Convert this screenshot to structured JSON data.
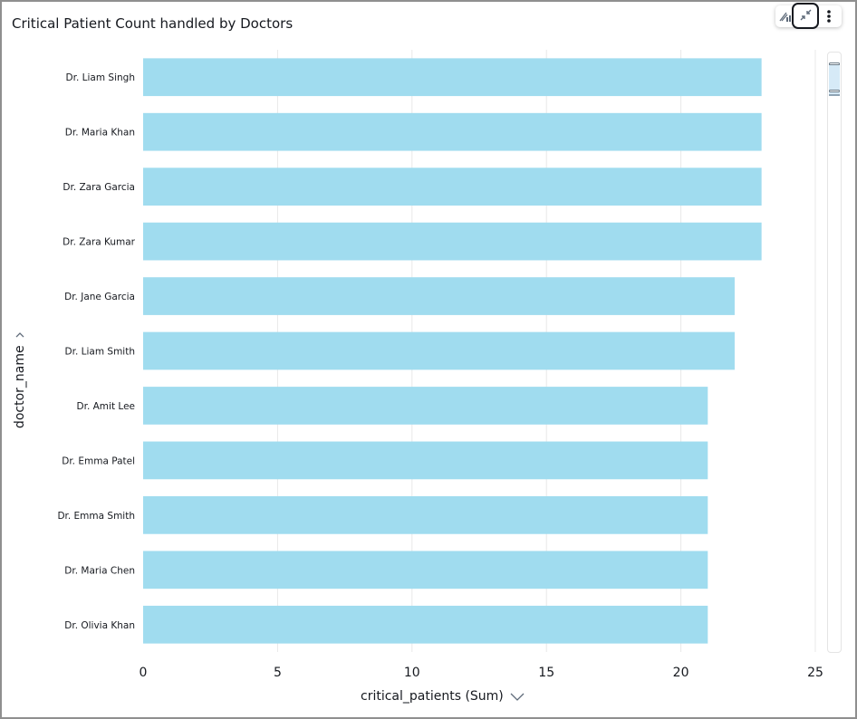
{
  "title": "Critical Patient Count handled by Doctors",
  "toolbar": {
    "icons": [
      "insight-chart-icon",
      "collapse-icon",
      "more-vertical-icon"
    ]
  },
  "colors": {
    "bar": "#a0dcef",
    "grid": "#e8e8e8",
    "text": "#16191f"
  },
  "chart_data": {
    "type": "bar",
    "orientation": "horizontal",
    "ylabel": "doctor_name",
    "xlabel": "critical_patients (Sum)",
    "xlim": [
      0,
      25
    ],
    "xticks": [
      0,
      5,
      10,
      15,
      20,
      25
    ],
    "grid": true,
    "categories": [
      "Dr. Liam Singh",
      "Dr. Maria Khan",
      "Dr. Zara Garcia",
      "Dr. Zara Kumar",
      "Dr. Jane Garcia",
      "Dr. Liam Smith",
      "Dr. Amit Lee",
      "Dr. Emma Patel",
      "Dr. Emma Smith",
      "Dr. Maria Chen",
      "Dr. Olivia Khan"
    ],
    "values": [
      23,
      23,
      23,
      23,
      22,
      22,
      21,
      21,
      21,
      21,
      21
    ]
  }
}
